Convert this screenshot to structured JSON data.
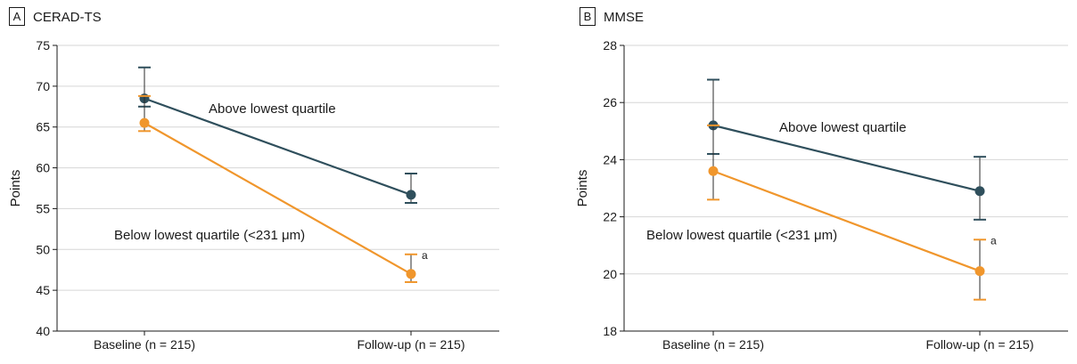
{
  "chart_data": [
    {
      "type": "line",
      "panel_letter": "A",
      "title": "CERAD-TS",
      "ylabel": "Points",
      "xlabel": "",
      "ylim": [
        40,
        75
      ],
      "yticks": [
        40,
        45,
        50,
        55,
        60,
        65,
        70,
        75
      ],
      "categories": [
        "Baseline (n = 215)",
        "Follow-up (n = 215)"
      ],
      "grid": true,
      "series": [
        {
          "name": "Above lowest quartile",
          "color": "#2f4f5c",
          "values": [
            68.5,
            56.7
          ],
          "error_low": [
            67.5,
            55.7
          ],
          "error_high": [
            72.3,
            59.3
          ],
          "annotation": ""
        },
        {
          "name": "Below lowest quartile (<231 μm)",
          "color": "#f0962c",
          "values": [
            65.5,
            47.0
          ],
          "error_low": [
            64.5,
            46.0
          ],
          "error_high": [
            68.8,
            49.4
          ],
          "annotation": "a"
        }
      ]
    },
    {
      "type": "line",
      "panel_letter": "B",
      "title": "MMSE",
      "ylabel": "Points",
      "xlabel": "",
      "ylim": [
        18,
        28
      ],
      "yticks": [
        18,
        20,
        22,
        24,
        26,
        28
      ],
      "categories": [
        "Baseline (n = 215)",
        "Follow-up (n = 215)"
      ],
      "grid": true,
      "series": [
        {
          "name": "Above lowest quartile",
          "color": "#2f4f5c",
          "values": [
            25.2,
            22.9
          ],
          "error_low": [
            24.2,
            21.9
          ],
          "error_high": [
            26.8,
            24.1
          ],
          "annotation": ""
        },
        {
          "name": "Below lowest quartile (<231 μm)",
          "color": "#f0962c",
          "values": [
            23.6,
            20.1
          ],
          "error_low": [
            22.6,
            19.1
          ],
          "error_high": [
            25.2,
            21.2
          ],
          "annotation": "a"
        }
      ]
    }
  ]
}
